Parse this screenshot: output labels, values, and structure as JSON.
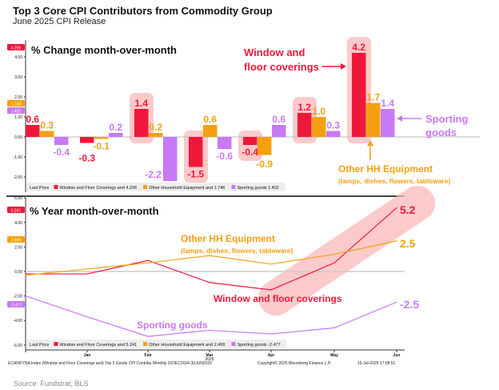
{
  "title": "Top 3 Core CPI Contributors from Commodity Group",
  "subtitle": "June 2025 CPI Release",
  "source": "Source: Fundstrat, BLS",
  "colors": {
    "window": "#f0183a",
    "other": "#f5a011",
    "sporting": "#c879f5",
    "highlight": "#fbb8b8"
  },
  "chart_data": [
    {
      "type": "bar",
      "title": "% Change month-over-month",
      "ylim": [
        -2.4,
        4.5
      ],
      "yticks": [
        "4.00",
        "3.00",
        "2.00",
        "1.00",
        "0.00",
        "-1.00",
        "-2.00"
      ],
      "legend_prefix": "Last Price",
      "series": [
        {
          "name": "Window and Floor Coverings and 4.206",
          "key": "window",
          "last": "4.206",
          "values": [
            0.6,
            -0.3,
            1.4,
            -1.5,
            -0.4,
            1.2,
            4.2
          ]
        },
        {
          "name": "Other Household Equipment and 1.746",
          "key": "other",
          "last": "1.746",
          "values": [
            0.3,
            -0.1,
            0.2,
            0.6,
            -0.9,
            1.0,
            1.7
          ]
        },
        {
          "name": "Sporting goods 1.402",
          "key": "sporting",
          "last": "1.402",
          "values": [
            -0.4,
            0.2,
            -2.2,
            -0.6,
            0.6,
            0.3,
            1.4
          ]
        }
      ],
      "annotations": {
        "window": [
          "Window and",
          "floor coverings"
        ],
        "sporting": [
          "Sporting",
          "goods"
        ],
        "other": "Other HH Equipment",
        "other_sub": "(lamps, dishes, flowers, tableware)"
      }
    },
    {
      "type": "line",
      "title": "% Year month-over-month",
      "ylim": [
        -6,
        6
      ],
      "yticks": [
        "6.00",
        "4.00",
        "2.00",
        "0.00",
        "-2.00",
        "-4.00",
        "-6.00"
      ],
      "categories": [
        "",
        "Jan",
        "Feb",
        "Mar",
        "Apr",
        "May",
        "Jun"
      ],
      "year_label": "2025",
      "legend_prefix": "Last Price",
      "series": [
        {
          "name": "Window and Floor Coverings and 5.241",
          "key": "window",
          "last": "5.241",
          "values": [
            -0.2,
            -0.2,
            0.9,
            -0.9,
            -1.5,
            0.7,
            5.2
          ]
        },
        {
          "name": "Other Household Equipment and 2.499",
          "key": "other",
          "last": "2.499",
          "values": [
            -0.3,
            0.2,
            0.7,
            1.3,
            0.6,
            1.4,
            2.5
          ]
        },
        {
          "name": "Sporting goods -2.477",
          "key": "sporting",
          "last": "-2.477",
          "values": [
            -2.0,
            -3.7,
            -5.3,
            -4.8,
            -5.1,
            -4.6,
            -2.5
          ]
        }
      ],
      "end_labels": [
        "5.2",
        "2.5",
        "-2.5"
      ],
      "annotations": {
        "other": "Other HH Equipment",
        "other_sub": "(lamps, dishes, flowers, tableware)",
        "window": "Window and floor coverings",
        "sporting": "Sporting goods"
      }
    }
  ],
  "footer": {
    "ticker": "ECANDYNA Index (Window and Floor Coverings and) Top 3 Goods CPI Contribu  Monthly 31DEC2024-30JUN2025",
    "copyright": "Copyright© 2025 Bloomberg Finance L.P.",
    "timestamp": "15-Jul-2025 17:08:51"
  }
}
